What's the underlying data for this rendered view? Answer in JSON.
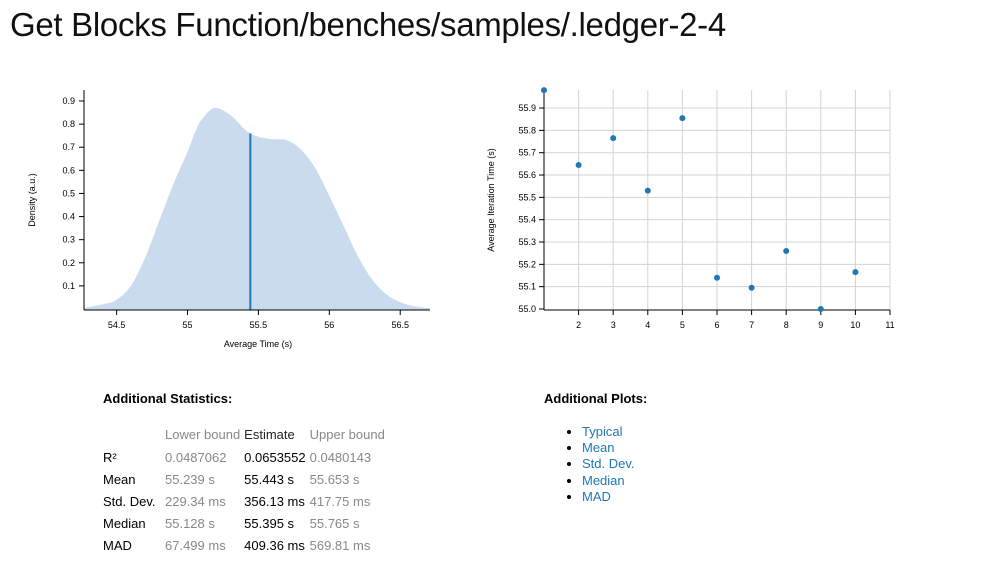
{
  "page": {
    "title": "Get Blocks Function/benches/samples/.ledger-2-4"
  },
  "colors": {
    "density_fill": "#c9dbec",
    "accent": "#1f77b4",
    "axis": "#000000",
    "grid": "#d3d3d3",
    "muted_text": "#888888"
  },
  "chart_data": [
    {
      "type": "area",
      "title": "",
      "xlabel": "Average Time (s)",
      "ylabel": "Density (a.u.)",
      "xlim": [
        54.27,
        56.71
      ],
      "ylim": [
        0,
        0.95
      ],
      "x_ticks": [
        "54.5",
        "55",
        "55.5",
        "56",
        "56.5"
      ],
      "y_ticks": [
        "0.1",
        "0.2",
        "0.3",
        "0.4",
        "0.5",
        "0.6",
        "0.7",
        "0.8",
        "0.9"
      ],
      "grid": false,
      "series": [
        {
          "name": "density",
          "x": [
            54.27,
            54.4,
            54.5,
            54.6,
            54.7,
            54.8,
            54.9,
            55.0,
            55.05,
            55.1,
            55.19,
            55.3,
            55.4,
            55.443,
            55.5,
            55.6,
            55.7,
            55.8,
            55.9,
            56.0,
            56.1,
            56.2,
            56.3,
            56.4,
            56.5,
            56.6,
            56.71
          ],
          "y": [
            0.005,
            0.02,
            0.04,
            0.1,
            0.22,
            0.38,
            0.54,
            0.68,
            0.76,
            0.82,
            0.87,
            0.84,
            0.78,
            0.76,
            0.745,
            0.735,
            0.73,
            0.69,
            0.61,
            0.49,
            0.36,
            0.23,
            0.13,
            0.065,
            0.03,
            0.012,
            0.004
          ]
        }
      ],
      "annotations": [
        {
          "type": "vline",
          "label": "mean",
          "x": 55.443,
          "y_top": 0.76
        }
      ]
    },
    {
      "type": "scatter",
      "title": "",
      "xlabel": "",
      "ylabel": "Average Iteration Time (s)",
      "xlim": [
        1,
        11
      ],
      "ylim": [
        55.0,
        55.9
      ],
      "x_ticks": [
        "2",
        "3",
        "4",
        "5",
        "6",
        "7",
        "8",
        "9",
        "10",
        "11"
      ],
      "y_ticks": [
        "55.0",
        "55.1",
        "55.2",
        "55.3",
        "55.4",
        "55.5",
        "55.6",
        "55.7",
        "55.8",
        "55.9"
      ],
      "grid": true,
      "series": [
        {
          "name": "samples",
          "x": [
            1,
            2,
            3,
            4,
            5,
            6,
            7,
            8,
            9,
            10
          ],
          "y": [
            55.98,
            55.645,
            55.765,
            55.53,
            55.855,
            55.14,
            55.095,
            55.26,
            55.0,
            55.165
          ]
        }
      ]
    }
  ],
  "stats": {
    "heading": "Additional Statistics:",
    "columns": [
      "",
      "Lower bound",
      "Estimate",
      "Upper bound"
    ],
    "rows": [
      {
        "label": "R²",
        "lower": "0.0487062",
        "estimate": "0.0653552",
        "upper": "0.0480143"
      },
      {
        "label": "Mean",
        "lower": "55.239 s",
        "estimate": "55.443 s",
        "upper": "55.653 s"
      },
      {
        "label": "Std. Dev.",
        "lower": "229.34 ms",
        "estimate": "356.13 ms",
        "upper": "417.75 ms"
      },
      {
        "label": "Median",
        "lower": "55.128 s",
        "estimate": "55.395 s",
        "upper": "55.765 s"
      },
      {
        "label": "MAD",
        "lower": "67.499 ms",
        "estimate": "409.36 ms",
        "upper": "569.81 ms"
      }
    ]
  },
  "plots": {
    "heading": "Additional Plots:",
    "links": [
      "Typical",
      "Mean",
      "Std. Dev.",
      "Median",
      "MAD"
    ]
  }
}
